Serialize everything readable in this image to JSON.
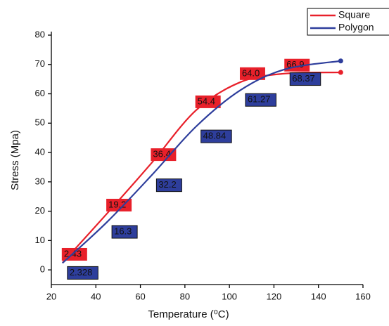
{
  "chart_data": {
    "type": "line",
    "x_label": "Temperature (⁰C)",
    "y_label": "Stress (Mpa)",
    "x": [
      25,
      45,
      65,
      85,
      105,
      125,
      150
    ],
    "series": [
      {
        "name": "Square",
        "color": "#e8202a",
        "values": [
          2.43,
          19.2,
          36.4,
          54.4,
          64.0,
          66.9,
          67.3
        ],
        "value_labels": [
          "2.43",
          "19.2",
          "36.4",
          "54.4",
          "64.0",
          "66.9",
          null
        ]
      },
      {
        "name": "Polygon",
        "color": "#2e3e9c",
        "values": [
          2.328,
          16.3,
          32.2,
          48.84,
          61.27,
          68.37,
          71.2
        ],
        "value_labels": [
          "2.328",
          "16.3",
          "32.2",
          "48.84",
          "61.27",
          "68.37",
          null
        ]
      }
    ],
    "xlim": [
      20,
      160
    ],
    "xticks": [
      20,
      40,
      60,
      80,
      100,
      120,
      140,
      160
    ],
    "ylim": [
      -5,
      80
    ],
    "yticks": [
      0,
      10,
      20,
      30,
      40,
      50,
      60,
      70,
      80
    ],
    "legend": "top-right"
  }
}
